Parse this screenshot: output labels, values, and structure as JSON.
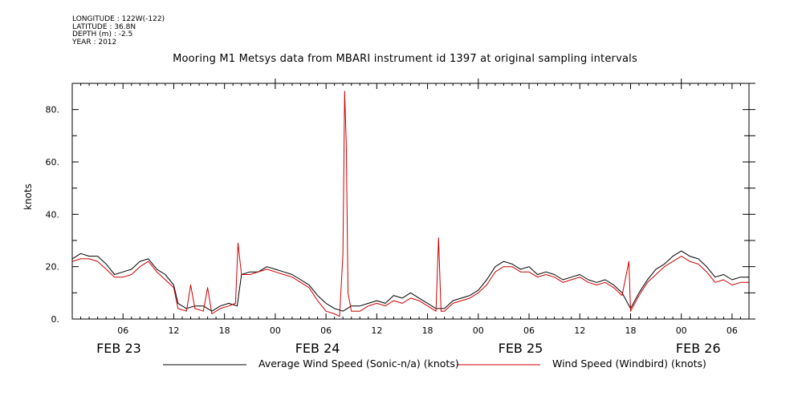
{
  "meta": {
    "longitude": "LONGITUDE : 122W(-122)",
    "latitude": "LATITUDE : 36.8N",
    "depth": "DEPTH (m) : -2.5",
    "year": "YEAR : 2012"
  },
  "chart_data": {
    "type": "line",
    "title": "Mooring M1 Metsys data from MBARI instrument id 1397 at original sampling intervals",
    "ylabel": "knots",
    "xlabel": "",
    "xlim_hours": [
      0,
      80
    ],
    "ylim": [
      0,
      90
    ],
    "y_ticks": [
      {
        "value": 0,
        "label": "0."
      },
      {
        "value": 20,
        "label": "20."
      },
      {
        "value": 40,
        "label": "40."
      },
      {
        "value": 60,
        "label": "60."
      },
      {
        "value": 80,
        "label": "80."
      }
    ],
    "x_ticks": [
      {
        "hour": 6,
        "label": "06"
      },
      {
        "hour": 12,
        "label": "12"
      },
      {
        "hour": 18,
        "label": "18"
      },
      {
        "hour": 24,
        "label": "00"
      },
      {
        "hour": 30,
        "label": "06"
      },
      {
        "hour": 36,
        "label": "12"
      },
      {
        "hour": 42,
        "label": "18"
      },
      {
        "hour": 48,
        "label": "00"
      },
      {
        "hour": 54,
        "label": "06"
      },
      {
        "hour": 60,
        "label": "12"
      },
      {
        "hour": 66,
        "label": "18"
      },
      {
        "hour": 72,
        "label": "00"
      },
      {
        "hour": 78,
        "label": "06"
      }
    ],
    "date_labels": [
      {
        "hour": 5.5,
        "label": "FEB 23"
      },
      {
        "hour": 29,
        "label": "FEB 24"
      },
      {
        "hour": 53,
        "label": "FEB 25"
      },
      {
        "hour": 74,
        "label": "FEB 26"
      }
    ],
    "series": [
      {
        "name": "Average Wind Speed (Sonic-n/a) (knots)",
        "color": "#000000",
        "points": [
          [
            0,
            23
          ],
          [
            1,
            25
          ],
          [
            2,
            24
          ],
          [
            3,
            24
          ],
          [
            4,
            21
          ],
          [
            5,
            17
          ],
          [
            6,
            18
          ],
          [
            7,
            19
          ],
          [
            8,
            22
          ],
          [
            9,
            23
          ],
          [
            10,
            19
          ],
          [
            11,
            17
          ],
          [
            12,
            13
          ],
          [
            12.5,
            6
          ],
          [
            13.5,
            4
          ],
          [
            14.5,
            5
          ],
          [
            15.5,
            5
          ],
          [
            16.5,
            3
          ],
          [
            17.5,
            5
          ],
          [
            18.5,
            6
          ],
          [
            19.5,
            5
          ],
          [
            20,
            17
          ],
          [
            21,
            18
          ],
          [
            22,
            18
          ],
          [
            23,
            20
          ],
          [
            24,
            19
          ],
          [
            25,
            18
          ],
          [
            26,
            17
          ],
          [
            27,
            15
          ],
          [
            28,
            13
          ],
          [
            29,
            9
          ],
          [
            30,
            6
          ],
          [
            31,
            4
          ],
          [
            32,
            3
          ],
          [
            33,
            5
          ],
          [
            34,
            5
          ],
          [
            35,
            6
          ],
          [
            36,
            7
          ],
          [
            37,
            6
          ],
          [
            38,
            9
          ],
          [
            39,
            8
          ],
          [
            40,
            10
          ],
          [
            41,
            8
          ],
          [
            42,
            6
          ],
          [
            43,
            4
          ],
          [
            44,
            4
          ],
          [
            45,
            7
          ],
          [
            46,
            8
          ],
          [
            47,
            9
          ],
          [
            48,
            11
          ],
          [
            49,
            15
          ],
          [
            50,
            20
          ],
          [
            51,
            22
          ],
          [
            52,
            21
          ],
          [
            53,
            19
          ],
          [
            54,
            20
          ],
          [
            55,
            17
          ],
          [
            56,
            18
          ],
          [
            57,
            17
          ],
          [
            58,
            15
          ],
          [
            59,
            16
          ],
          [
            60,
            17
          ],
          [
            61,
            15
          ],
          [
            62,
            14
          ],
          [
            63,
            15
          ],
          [
            64,
            13
          ],
          [
            65,
            10
          ],
          [
            66,
            4
          ],
          [
            67,
            10
          ],
          [
            68,
            15
          ],
          [
            69,
            19
          ],
          [
            70,
            21
          ],
          [
            71,
            24
          ],
          [
            72,
            26
          ],
          [
            73,
            24
          ],
          [
            74,
            23
          ],
          [
            75,
            20
          ],
          [
            76,
            16
          ],
          [
            77,
            17
          ],
          [
            78,
            15
          ],
          [
            79,
            16
          ],
          [
            80,
            16
          ]
        ]
      },
      {
        "name": "Wind Speed (Windbird) (knots)",
        "color": "#cc0000",
        "points": [
          [
            0,
            22
          ],
          [
            1,
            23
          ],
          [
            2,
            23
          ],
          [
            3,
            22
          ],
          [
            4,
            19
          ],
          [
            5,
            16
          ],
          [
            6,
            16
          ],
          [
            7,
            17
          ],
          [
            8,
            20
          ],
          [
            9,
            22
          ],
          [
            10,
            18
          ],
          [
            11,
            15
          ],
          [
            12,
            12
          ],
          [
            12.5,
            4
          ],
          [
            13.5,
            3
          ],
          [
            14,
            13
          ],
          [
            14.5,
            4
          ],
          [
            15.5,
            3
          ],
          [
            16,
            12
          ],
          [
            16.5,
            2
          ],
          [
            17.5,
            4
          ],
          [
            18.5,
            5
          ],
          [
            19.3,
            6
          ],
          [
            19.6,
            29
          ],
          [
            20,
            17
          ],
          [
            21,
            17
          ],
          [
            22,
            18
          ],
          [
            23,
            19
          ],
          [
            24,
            18
          ],
          [
            25,
            17
          ],
          [
            26,
            16
          ],
          [
            27,
            14
          ],
          [
            28,
            12
          ],
          [
            29,
            7
          ],
          [
            30,
            3
          ],
          [
            31,
            2
          ],
          [
            31.6,
            1
          ],
          [
            32.0,
            25
          ],
          [
            32.2,
            87
          ],
          [
            32.4,
            66
          ],
          [
            32.6,
            10
          ],
          [
            33,
            3
          ],
          [
            34,
            3
          ],
          [
            35,
            5
          ],
          [
            36,
            6
          ],
          [
            37,
            5
          ],
          [
            38,
            7
          ],
          [
            39,
            6
          ],
          [
            40,
            8
          ],
          [
            41,
            7
          ],
          [
            42,
            5
          ],
          [
            43,
            3
          ],
          [
            43.3,
            31
          ],
          [
            43.6,
            3
          ],
          [
            44,
            3
          ],
          [
            45,
            6
          ],
          [
            46,
            7
          ],
          [
            47,
            8
          ],
          [
            48,
            10
          ],
          [
            49,
            13
          ],
          [
            50,
            18
          ],
          [
            51,
            20
          ],
          [
            52,
            20
          ],
          [
            53,
            18
          ],
          [
            54,
            18
          ],
          [
            55,
            16
          ],
          [
            56,
            17
          ],
          [
            57,
            16
          ],
          [
            58,
            14
          ],
          [
            59,
            15
          ],
          [
            60,
            16
          ],
          [
            61,
            14
          ],
          [
            62,
            13
          ],
          [
            63,
            14
          ],
          [
            64,
            12
          ],
          [
            65,
            9
          ],
          [
            65.8,
            22
          ],
          [
            66,
            3
          ],
          [
            67,
            9
          ],
          [
            68,
            14
          ],
          [
            69,
            17
          ],
          [
            70,
            20
          ],
          [
            71,
            22
          ],
          [
            72,
            24
          ],
          [
            73,
            22
          ],
          [
            74,
            21
          ],
          [
            75,
            18
          ],
          [
            76,
            14
          ],
          [
            77,
            15
          ],
          [
            78,
            13
          ],
          [
            79,
            14
          ],
          [
            80,
            14
          ]
        ]
      }
    ]
  }
}
